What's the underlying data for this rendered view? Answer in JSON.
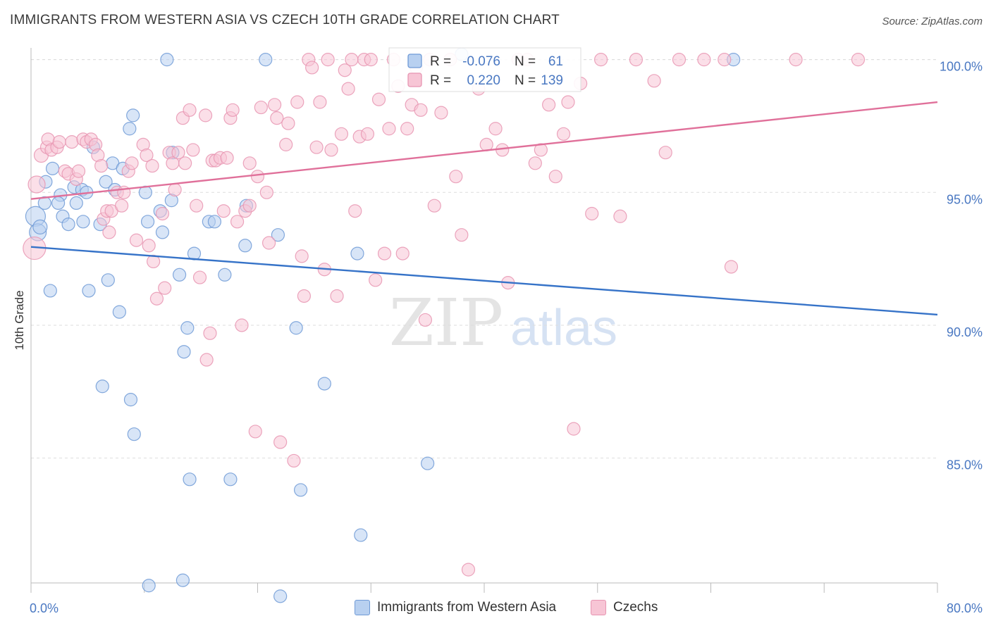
{
  "header": {
    "title": "IMMIGRANTS FROM WESTERN ASIA VS CZECH 10TH GRADE CORRELATION CHART",
    "source": "Source: ZipAtlas.com"
  },
  "watermark": {
    "zip": "ZIP",
    "atlas": "atlas"
  },
  "legend_stats": [
    {
      "r_label": "R =",
      "r_value": "-0.076",
      "n_label": "N =",
      "n_value": "61"
    },
    {
      "r_label": "R =",
      "r_value": "0.220",
      "n_label": "N =",
      "n_value": "139"
    }
  ],
  "colors": {
    "blue_fill": "#b8d0f0",
    "blue_stroke": "#6f9ad6",
    "blue_line": "#3673c8",
    "pink_fill": "#f7c5d5",
    "pink_stroke": "#e795b2",
    "pink_line": "#e0709a",
    "axis_value": "#4a78c2",
    "grid": "#dddddd"
  },
  "chart_data": {
    "type": "scatter",
    "ylabel": "10th Grade",
    "xlabel": "",
    "xlim": [
      0,
      80
    ],
    "ylim": [
      80.3,
      100.6
    ],
    "x_tick_labels": [
      "0.0%",
      "80.0%"
    ],
    "y_ticks": [
      {
        "value": 85,
        "label": "85.0%"
      },
      {
        "value": 90,
        "label": "90.0%"
      },
      {
        "value": 95,
        "label": "95.0%"
      },
      {
        "value": 100,
        "label": "100.0%"
      }
    ],
    "grid": true,
    "legend_position": "top-center",
    "series": [
      {
        "name": "Immigrants from Western Asia",
        "color": "#b8d0f0",
        "trend": {
          "x": [
            0,
            80
          ],
          "y": [
            92.95,
            90.4
          ]
        },
        "points": [
          [
            0.4,
            94.1
          ],
          [
            0.6,
            93.5
          ],
          [
            0.8,
            93.7
          ],
          [
            1.2,
            94.6
          ],
          [
            1.3,
            95.4
          ],
          [
            1.9,
            95.9
          ],
          [
            2.6,
            94.9
          ],
          [
            2.4,
            94.6
          ],
          [
            2.8,
            94.1
          ],
          [
            3.3,
            93.8
          ],
          [
            3.8,
            95.2
          ],
          [
            4.0,
            94.6
          ],
          [
            4.5,
            95.1
          ],
          [
            4.6,
            93.9
          ],
          [
            4.9,
            95.0
          ],
          [
            5.5,
            96.7
          ],
          [
            6.1,
            93.8
          ],
          [
            6.6,
            95.4
          ],
          [
            7.2,
            96.1
          ],
          [
            7.4,
            95.1
          ],
          [
            7.8,
            90.5
          ],
          [
            8.1,
            95.9
          ],
          [
            8.7,
            97.4
          ],
          [
            9.0,
            97.9
          ],
          [
            10.1,
            95.0
          ],
          [
            10.3,
            93.9
          ],
          [
            11.4,
            94.3
          ],
          [
            11.6,
            93.5
          ],
          [
            12.5,
            96.5
          ],
          [
            12.4,
            94.7
          ],
          [
            12.0,
            100.0
          ],
          [
            13.1,
            91.9
          ],
          [
            13.5,
            89.0
          ],
          [
            13.8,
            89.9
          ],
          [
            14.4,
            92.7
          ],
          [
            15.7,
            93.9
          ],
          [
            16.2,
            93.9
          ],
          [
            17.1,
            91.9
          ],
          [
            19.0,
            94.5
          ],
          [
            18.9,
            93.0
          ],
          [
            20.7,
            100.0
          ],
          [
            21.8,
            93.4
          ],
          [
            23.4,
            89.9
          ],
          [
            17.6,
            84.2
          ],
          [
            14.0,
            84.2
          ],
          [
            22.0,
            79.8
          ],
          [
            23.8,
            83.8
          ],
          [
            25.9,
            87.8
          ],
          [
            28.8,
            92.7
          ],
          [
            29.1,
            82.1
          ],
          [
            35.0,
            84.8
          ],
          [
            38.0,
            100.2
          ],
          [
            62.0,
            100.0
          ],
          [
            1.7,
            91.3
          ],
          [
            5.1,
            91.3
          ],
          [
            6.3,
            87.7
          ],
          [
            6.8,
            91.7
          ],
          [
            8.8,
            87.2
          ],
          [
            9.1,
            85.9
          ],
          [
            10.4,
            80.2
          ],
          [
            13.4,
            80.4
          ]
        ],
        "point_sizes": [
          14,
          12,
          10,
          9,
          9,
          9,
          9,
          9,
          9,
          9,
          9,
          9,
          9,
          9,
          9,
          9,
          9,
          9,
          9,
          9,
          9,
          9,
          9,
          9,
          9,
          9,
          9,
          9,
          9,
          9,
          9,
          9,
          9,
          9,
          9,
          9,
          9,
          9,
          9,
          9,
          9,
          9,
          9,
          9,
          9,
          9,
          9,
          9,
          9,
          9,
          9,
          9,
          9,
          9,
          9,
          9,
          9,
          9,
          9,
          9,
          9
        ]
      },
      {
        "name": "Czechs",
        "color": "#f7c5d5",
        "trend": {
          "x": [
            0,
            80
          ],
          "y": [
            94.75,
            98.4
          ]
        },
        "points": [
          [
            0.3,
            92.9
          ],
          [
            0.5,
            95.3
          ],
          [
            0.9,
            96.4
          ],
          [
            1.4,
            96.7
          ],
          [
            1.5,
            97.0
          ],
          [
            1.8,
            96.6
          ],
          [
            2.3,
            96.7
          ],
          [
            2.5,
            96.9
          ],
          [
            3.0,
            95.8
          ],
          [
            3.3,
            95.7
          ],
          [
            3.6,
            96.9
          ],
          [
            4.0,
            95.5
          ],
          [
            4.2,
            95.8
          ],
          [
            4.6,
            97.0
          ],
          [
            4.9,
            96.9
          ],
          [
            5.3,
            97.0
          ],
          [
            5.7,
            96.8
          ],
          [
            5.9,
            96.4
          ],
          [
            6.2,
            96.0
          ],
          [
            6.4,
            94.0
          ],
          [
            6.7,
            94.3
          ],
          [
            6.9,
            93.5
          ],
          [
            7.1,
            94.3
          ],
          [
            7.6,
            95.0
          ],
          [
            8.0,
            94.5
          ],
          [
            8.2,
            95.0
          ],
          [
            8.6,
            95.8
          ],
          [
            8.9,
            96.1
          ],
          [
            9.3,
            93.2
          ],
          [
            9.9,
            96.8
          ],
          [
            10.2,
            96.4
          ],
          [
            10.4,
            93.0
          ],
          [
            10.7,
            96.0
          ],
          [
            10.8,
            92.4
          ],
          [
            11.1,
            91.0
          ],
          [
            11.6,
            94.2
          ],
          [
            11.8,
            91.4
          ],
          [
            12.2,
            96.5
          ],
          [
            12.5,
            96.1
          ],
          [
            12.7,
            95.1
          ],
          [
            13.0,
            96.5
          ],
          [
            13.6,
            96.1
          ],
          [
            13.4,
            97.8
          ],
          [
            14.0,
            98.1
          ],
          [
            14.3,
            96.6
          ],
          [
            14.6,
            94.5
          ],
          [
            14.9,
            91.8
          ],
          [
            15.4,
            97.9
          ],
          [
            15.5,
            88.7
          ],
          [
            15.8,
            89.7
          ],
          [
            16.0,
            96.2
          ],
          [
            16.3,
            96.2
          ],
          [
            16.7,
            96.3
          ],
          [
            17.0,
            94.3
          ],
          [
            17.3,
            96.3
          ],
          [
            17.6,
            97.8
          ],
          [
            17.8,
            98.1
          ],
          [
            18.2,
            93.9
          ],
          [
            18.6,
            90.0
          ],
          [
            18.9,
            94.3
          ],
          [
            19.3,
            96.1
          ],
          [
            19.3,
            94.5
          ],
          [
            19.8,
            86.0
          ],
          [
            20.0,
            95.6
          ],
          [
            20.3,
            98.2
          ],
          [
            20.8,
            95.0
          ],
          [
            21.0,
            93.1
          ],
          [
            21.5,
            98.3
          ],
          [
            21.7,
            97.8
          ],
          [
            22.0,
            85.6
          ],
          [
            22.5,
            96.8
          ],
          [
            22.7,
            97.6
          ],
          [
            23.2,
            84.9
          ],
          [
            23.5,
            98.4
          ],
          [
            23.9,
            92.6
          ],
          [
            24.1,
            91.1
          ],
          [
            24.5,
            100.0
          ],
          [
            24.8,
            99.7
          ],
          [
            25.2,
            96.7
          ],
          [
            25.5,
            98.4
          ],
          [
            25.9,
            92.1
          ],
          [
            26.2,
            100.0
          ],
          [
            26.5,
            96.6
          ],
          [
            27.0,
            91.1
          ],
          [
            27.4,
            97.2
          ],
          [
            27.7,
            99.6
          ],
          [
            28.0,
            98.9
          ],
          [
            28.3,
            100.0
          ],
          [
            28.6,
            94.3
          ],
          [
            29.0,
            97.1
          ],
          [
            29.4,
            100.0
          ],
          [
            29.7,
            97.2
          ],
          [
            30.0,
            100.0
          ],
          [
            30.4,
            91.7
          ],
          [
            30.7,
            98.5
          ],
          [
            31.2,
            92.7
          ],
          [
            31.6,
            97.4
          ],
          [
            32.0,
            100.0
          ],
          [
            32.4,
            99.0
          ],
          [
            32.8,
            92.7
          ],
          [
            33.2,
            97.4
          ],
          [
            33.6,
            98.3
          ],
          [
            34.0,
            99.7
          ],
          [
            34.4,
            98.1
          ],
          [
            34.8,
            90.2
          ],
          [
            35.2,
            100.0
          ],
          [
            35.6,
            94.5
          ],
          [
            36.2,
            98.0
          ],
          [
            37.0,
            100.0
          ],
          [
            37.5,
            95.6
          ],
          [
            38.0,
            93.4
          ],
          [
            38.6,
            80.8
          ],
          [
            39.5,
            98.9
          ],
          [
            40.2,
            96.8
          ],
          [
            41.0,
            97.4
          ],
          [
            41.6,
            96.6
          ],
          [
            42.1,
            91.6
          ],
          [
            43.0,
            100.0
          ],
          [
            43.8,
            100.0
          ],
          [
            44.5,
            96.1
          ],
          [
            45.0,
            96.6
          ],
          [
            45.7,
            98.3
          ],
          [
            46.3,
            95.6
          ],
          [
            47.0,
            97.2
          ],
          [
            47.4,
            98.4
          ],
          [
            47.9,
            86.1
          ],
          [
            48.5,
            99.1
          ],
          [
            49.5,
            94.2
          ],
          [
            50.3,
            100.0
          ],
          [
            52.0,
            94.1
          ],
          [
            53.4,
            100.0
          ],
          [
            55.0,
            99.2
          ],
          [
            56.0,
            96.5
          ],
          [
            57.2,
            100.0
          ],
          [
            59.4,
            100.0
          ],
          [
            61.2,
            100.0
          ],
          [
            61.8,
            92.2
          ],
          [
            67.5,
            100.0
          ],
          [
            73.0,
            100.0
          ]
        ],
        "point_sizes": [
          16,
          12,
          10,
          9,
          9,
          9,
          9,
          9,
          9,
          9,
          9,
          9,
          9,
          9,
          9,
          9,
          9,
          9,
          9,
          9,
          9,
          9,
          9,
          9,
          9,
          9,
          9,
          9,
          9,
          9,
          9,
          9,
          9,
          9,
          9,
          9,
          9,
          9,
          9,
          9,
          9,
          9,
          9,
          9,
          9,
          9,
          9,
          9,
          9,
          9,
          9,
          9,
          9,
          9,
          9,
          9,
          9,
          9,
          9,
          9,
          9,
          9,
          9,
          9,
          9,
          9,
          9,
          9,
          9,
          9,
          9,
          9,
          9,
          9,
          9,
          9,
          9,
          9,
          9,
          9,
          9,
          9,
          9,
          9,
          9,
          9,
          9,
          9,
          9,
          9,
          9,
          9,
          9,
          9,
          9,
          9,
          9,
          9,
          9,
          9,
          9,
          9,
          9,
          9,
          9,
          9,
          9,
          9,
          9,
          9,
          9,
          9,
          9,
          9,
          9,
          9,
          9,
          9,
          9,
          9,
          9,
          9,
          9,
          9,
          9,
          9,
          9,
          9,
          9,
          9,
          9,
          9,
          9,
          9,
          9,
          9,
          9,
          9,
          9
        ]
      }
    ]
  }
}
